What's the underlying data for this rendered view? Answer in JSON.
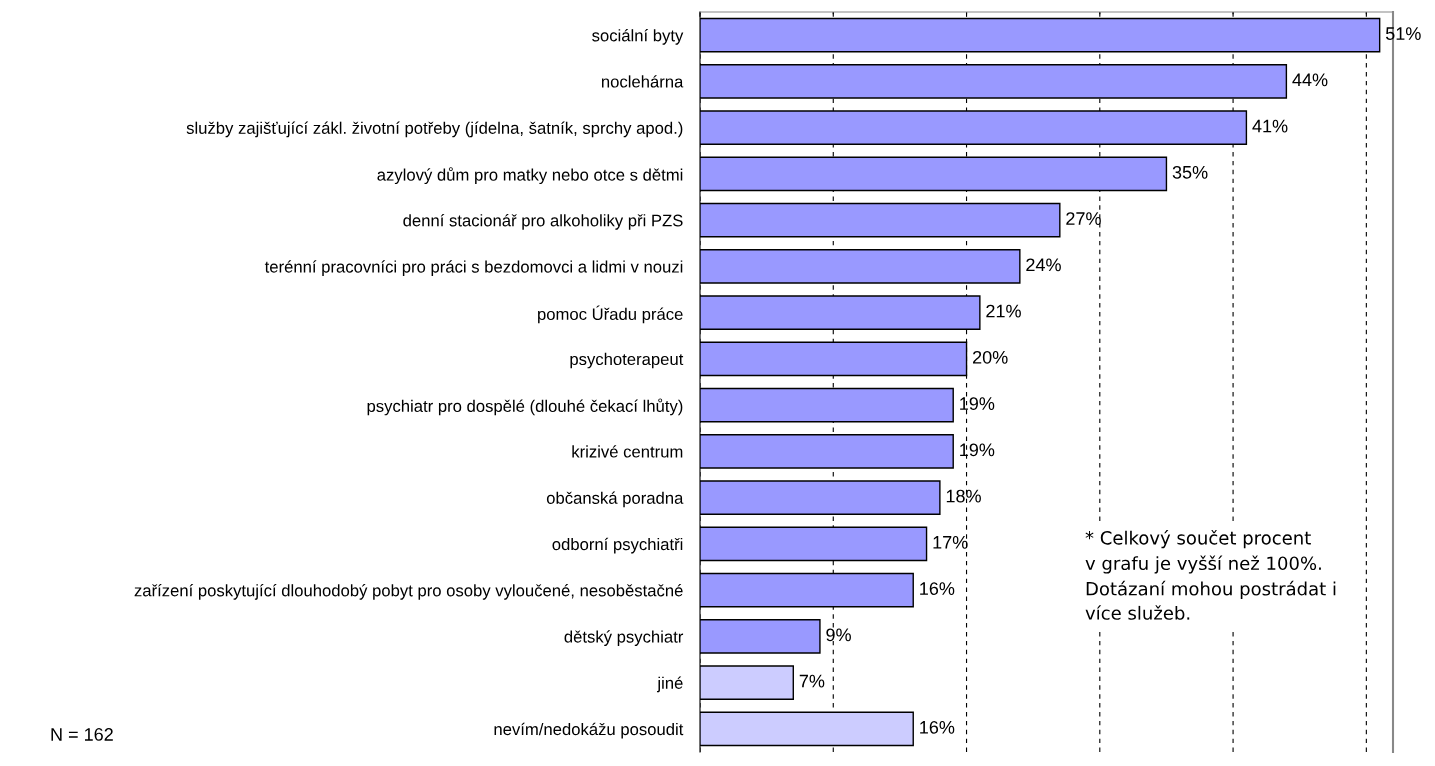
{
  "chart_data": {
    "type": "bar",
    "orientation": "horizontal",
    "categories": [
      "sociální byty",
      "noclehárna",
      "služby zajišťující zákl. životní potřeby (jídelna, šatník, sprchy apod.)",
      "azylový dům pro matky nebo otce s dětmi",
      "denní stacionář pro alkoholiky při PZS",
      "terénní pracovníci pro práci s bezdomovci a lidmi v nouzi",
      "pomoc Úřadu práce",
      "psychoterapeut",
      "psychiatr pro dospělé (dlouhé čekací lhůty)",
      "krizivé centrum",
      "občanská poradna",
      "odborní psychiatři",
      "zařízení poskytující dlouhodobý pobyt pro osoby vyloučené, nesoběstačné",
      "dětský psychiatr",
      "jiné",
      "nevím/nedokážu posoudit"
    ],
    "values": [
      51,
      44,
      41,
      35,
      27,
      24,
      21,
      20,
      19,
      19,
      18,
      17,
      16,
      9,
      7,
      16
    ],
    "value_labels": [
      "51%",
      "44%",
      "41%",
      "35%",
      "27%",
      "24%",
      "21%",
      "20%",
      "19%",
      "19%",
      "18%",
      "17%",
      "16%",
      "9%",
      "7%",
      "16%"
    ],
    "colors": [
      "#9999ff",
      "#9999ff",
      "#9999ff",
      "#9999ff",
      "#9999ff",
      "#9999ff",
      "#9999ff",
      "#9999ff",
      "#9999ff",
      "#9999ff",
      "#9999ff",
      "#9999ff",
      "#9999ff",
      "#9999ff",
      "#ccccff",
      "#ccccff"
    ],
    "xlim": [
      0,
      52
    ],
    "xticks": [
      {
        "value": 0,
        "label": null
      },
      {
        "value": 10,
        "label": null
      },
      {
        "value": 20,
        "label": null
      },
      {
        "value": 30,
        "label": null
      },
      {
        "value": 40,
        "label": null
      },
      {
        "value": 50,
        "label": null
      }
    ],
    "grid": "x",
    "tick_labels": "y",
    "annotations": [
      "* Celkový součet procent\nv grafu je vyšší než 100%.\nDotázaní mohou postrádat i\nvíce služeb.",
      "N = 162"
    ]
  }
}
